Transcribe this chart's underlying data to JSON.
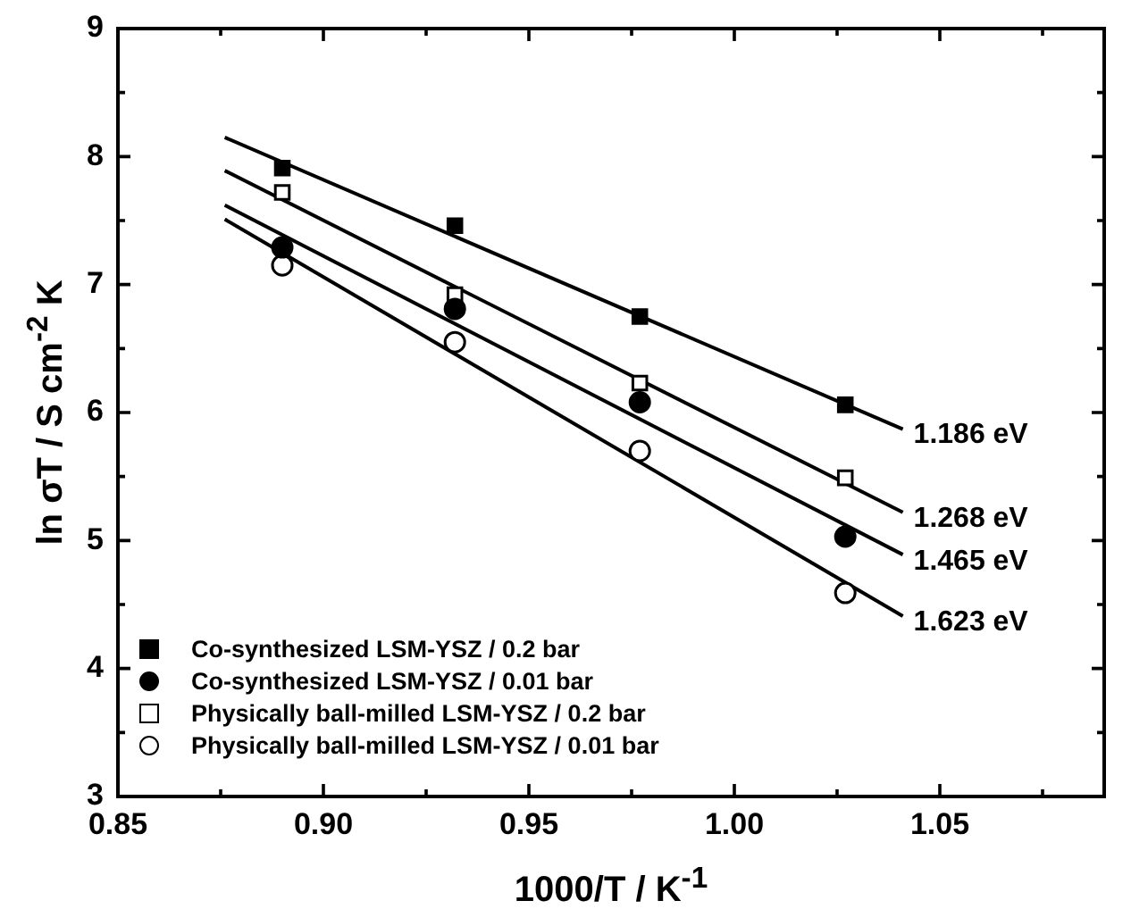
{
  "chart_data": {
    "type": "scatter",
    "xlabel": "1000/T  /  K$^{-1}$",
    "ylabel": "ln σT  /  S cm$^{-2}$ K",
    "xlim": [
      0.85,
      1.09
    ],
    "xticks": [
      0.85,
      {
        "value": 0.875,
        "label": null
      },
      {
        "value": 0.9,
        "label": "0.90"
      },
      {
        "value": 0.925,
        "label": null
      },
      0.95,
      {
        "value": 0.975,
        "label": null
      },
      {
        "value": 1.0,
        "label": "1.00"
      },
      {
        "value": 1.025,
        "label": null
      },
      1.05,
      {
        "value": 1.075,
        "label": null
      }
    ],
    "ylim": [
      3,
      9
    ],
    "yticks": [
      3,
      {
        "value": 3.5,
        "label": null
      },
      4,
      {
        "value": 4.5,
        "label": null
      },
      5,
      {
        "value": 5.5,
        "label": null
      },
      6,
      {
        "value": 6.5,
        "label": null
      },
      7,
      {
        "value": 7.5,
        "label": null
      },
      8,
      {
        "value": 8.5,
        "label": null
      },
      9
    ],
    "grid": false,
    "legend": "bottom left",
    "series": [
      {
        "name": "Co-synthesized LSM-YSZ / 0.2 bar",
        "marker": "square",
        "color": "#000000",
        "x": [
          0.89,
          0.932,
          0.977,
          1.027
        ],
        "values": [
          7.91,
          7.46,
          6.75,
          6.06
        ]
      },
      {
        "name": "Co-synthesized LSM-YSZ / 0.01 bar",
        "marker": "circle",
        "color": "#000000",
        "x": [
          0.89,
          0.932,
          0.977,
          1.027
        ],
        "values": [
          7.29,
          6.81,
          6.08,
          5.03
        ]
      },
      {
        "name": "Physically ball-milled LSM-YSZ / 0.2 bar",
        "marker": "square",
        "color": "#ffffff",
        "x": [
          0.89,
          0.932,
          0.977,
          1.027
        ],
        "values": [
          7.72,
          6.92,
          6.23,
          5.49
        ]
      },
      {
        "name": "Physically ball-milled LSM-YSZ / 0.01 bar",
        "marker": "circle",
        "color": "#ffffff",
        "x": [
          0.89,
          0.932,
          0.977,
          1.027
        ],
        "values": [
          7.15,
          6.55,
          5.7,
          4.59
        ]
      },
      {
        "type": "line",
        "marker": "none",
        "color": "#000000",
        "x": [
          0.876,
          1.041
        ],
        "values": [
          8.15,
          5.87
        ]
      },
      {
        "type": "line",
        "marker": "none",
        "color": "#000000",
        "x": [
          0.876,
          1.041
        ],
        "values": [
          7.89,
          5.22
        ]
      },
      {
        "type": "line",
        "marker": "none",
        "color": "#000000",
        "x": [
          0.876,
          1.041
        ],
        "values": [
          7.62,
          4.89
        ]
      },
      {
        "type": "line",
        "marker": "none",
        "color": "#000000",
        "x": [
          0.876,
          1.041
        ],
        "values": [
          7.51,
          4.41
        ]
      }
    ],
    "annotations": [
      "1.186 eV",
      "1.268 eV",
      "1.465 eV",
      "1.623 eV"
    ]
  }
}
